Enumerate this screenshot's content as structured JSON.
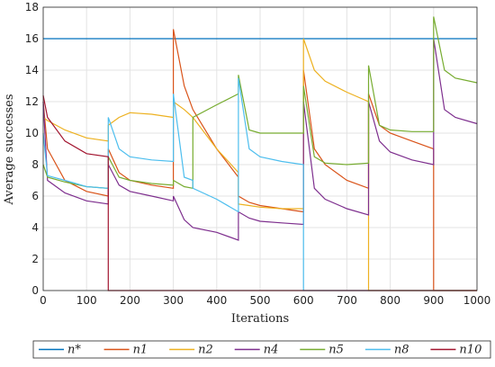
{
  "chart_data": {
    "type": "line",
    "xlabel": "Iterations",
    "ylabel": "Average successes",
    "x": [
      0,
      10,
      50,
      100,
      150,
      150,
      175,
      200,
      250,
      300,
      300,
      325,
      345,
      345,
      400,
      450,
      450,
      475,
      500,
      550,
      600,
      600,
      625,
      650,
      700,
      750,
      750,
      775,
      800,
      850,
      900,
      900,
      925,
      950,
      1000
    ],
    "series": [
      {
        "name": "n*",
        "color": "#0072BD",
        "values": [
          16,
          16,
          16,
          16,
          16,
          16,
          16,
          16,
          16,
          16,
          16,
          16,
          16,
          16,
          16,
          16,
          16,
          16,
          16,
          16,
          16,
          16,
          16,
          16,
          16,
          16,
          16,
          16,
          16,
          16,
          16,
          16,
          16,
          16,
          16
        ]
      },
      {
        "name": "n1",
        "color": "#D95319",
        "values": [
          12,
          9,
          7,
          6.3,
          6,
          9,
          7.5,
          7,
          6.7,
          6.5,
          16.6,
          13,
          11.5,
          11.5,
          9,
          7.2,
          6,
          5.6,
          5.4,
          5.2,
          5,
          14,
          9,
          8,
          7,
          6.5,
          12.5,
          10.5,
          10,
          9.5,
          9,
          0,
          0,
          0,
          0
        ]
      },
      {
        "name": "n2",
        "color": "#EDB120",
        "values": [
          11,
          10.8,
          10.2,
          9.7,
          9.5,
          10.5,
          11,
          11.3,
          11.2,
          11,
          12,
          11.5,
          11,
          11,
          9,
          7.5,
          5.5,
          5.4,
          5.3,
          5.2,
          5.2,
          16,
          14,
          13.3,
          12.6,
          12,
          0,
          0,
          0,
          0,
          0,
          0,
          0,
          0,
          0
        ]
      },
      {
        "name": "n4",
        "color": "#7E2F8E",
        "values": [
          12,
          7,
          6.2,
          5.7,
          5.5,
          8,
          6.7,
          6.3,
          6,
          5.7,
          6,
          4.5,
          4,
          4,
          3.7,
          3.2,
          5,
          4.6,
          4.4,
          4.3,
          4.2,
          12,
          6.5,
          5.8,
          5.2,
          4.8,
          12,
          9.5,
          8.8,
          8.3,
          8,
          16,
          11.5,
          11,
          10.6
        ]
      },
      {
        "name": "n5",
        "color": "#77AC30",
        "values": [
          8,
          7.2,
          6.9,
          6.6,
          6.5,
          8.5,
          7.2,
          7,
          6.8,
          6.7,
          7,
          6.6,
          6.5,
          11,
          11.8,
          12.5,
          13.7,
          10.2,
          10,
          10,
          10,
          13,
          8.5,
          8.1,
          8,
          8.1,
          14.3,
          10.5,
          10.2,
          10.1,
          10.1,
          17.4,
          14,
          13.5,
          13.2
        ]
      },
      {
        "name": "n8",
        "color": "#4DBEEE",
        "values": [
          10,
          7.3,
          7,
          6.6,
          6.5,
          11,
          9,
          8.5,
          8.3,
          8.2,
          12.5,
          7.2,
          7,
          6.5,
          5.8,
          5,
          13.5,
          9,
          8.5,
          8.2,
          8,
          0,
          0,
          0,
          0,
          0,
          0,
          0,
          0,
          0,
          0,
          0,
          0,
          0,
          0
        ]
      },
      {
        "name": "n10",
        "color": "#A2142F",
        "values": [
          12.4,
          11,
          9.5,
          8.7,
          8.5,
          0,
          0,
          0,
          0,
          0,
          0,
          0,
          0,
          0,
          0,
          0,
          0,
          0,
          0,
          0,
          0,
          0,
          0,
          0,
          0,
          0,
          0,
          0,
          0,
          0,
          0,
          0,
          0,
          0,
          0
        ]
      }
    ],
    "xlim": [
      0,
      1000
    ],
    "xticks": [
      0,
      100,
      200,
      300,
      400,
      500,
      600,
      700,
      800,
      900,
      1000
    ],
    "ylim": [
      0,
      18
    ],
    "yticks": [
      0,
      2,
      4,
      6,
      8,
      10,
      12,
      14,
      16,
      18
    ],
    "grid": true,
    "legend": "bottom"
  }
}
